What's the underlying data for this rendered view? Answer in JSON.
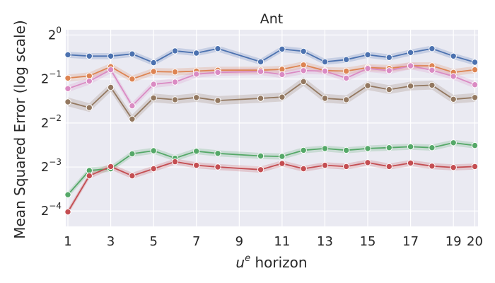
{
  "chart_data": {
    "type": "line",
    "title": "Ant",
    "xlabel_main": "u",
    "xlabel_sup": "e",
    "xlabel_rest": " horizon",
    "ylabel": "Mean Squared Error (log scale)",
    "yscale": "log2",
    "ylim_log2": [
      -4.35,
      0.12
    ],
    "xlim": [
      0.9,
      20.15
    ],
    "xticks": [
      1,
      3,
      5,
      7,
      9,
      11,
      13,
      15,
      17,
      19,
      20
    ],
    "yticks": [
      {
        "exp": 0,
        "base": "2",
        "sup": "0"
      },
      {
        "exp": -1,
        "base": "2",
        "sup": "−1"
      },
      {
        "exp": -2,
        "base": "2",
        "sup": "−2"
      },
      {
        "exp": -3,
        "base": "2",
        "sup": "−3"
      },
      {
        "exp": -4,
        "base": "2",
        "sup": "−4"
      }
    ],
    "x": [
      1,
      2,
      3,
      4,
      5,
      6,
      7,
      8,
      10,
      11,
      12,
      13,
      14,
      15,
      16,
      17,
      18,
      19,
      20
    ],
    "series": [
      {
        "name": "blue",
        "color": "#4c72b0",
        "band": 0.07,
        "log2": [
          -0.45,
          -0.48,
          -0.48,
          -0.43,
          -0.63,
          -0.36,
          -0.41,
          -0.31,
          -0.61,
          -0.32,
          -0.37,
          -0.61,
          -0.56,
          -0.45,
          -0.51,
          -0.4,
          -0.31,
          -0.48,
          -0.62
        ]
      },
      {
        "name": "orange",
        "color": "#dd8452",
        "band": 0.08,
        "log2": [
          -0.98,
          -0.93,
          -0.72,
          -1.0,
          -0.83,
          -0.84,
          -0.82,
          -0.8,
          -0.8,
          -0.78,
          -0.68,
          -0.81,
          -0.82,
          -0.74,
          -0.76,
          -0.7,
          -0.7,
          -0.85,
          -0.79
        ]
      },
      {
        "name": "pink",
        "color": "#da8bc3",
        "band": 0.08,
        "log2": [
          -1.22,
          -1.05,
          -0.79,
          -1.61,
          -1.12,
          -1.07,
          -0.89,
          -0.85,
          -0.83,
          -0.9,
          -0.81,
          -0.82,
          -0.98,
          -0.76,
          -0.81,
          -0.7,
          -0.8,
          -0.94,
          -1.13
        ]
      },
      {
        "name": "brown",
        "color": "#937860",
        "band": 0.1,
        "log2": [
          -1.52,
          -1.65,
          -1.19,
          -1.91,
          -1.43,
          -1.47,
          -1.42,
          -1.49,
          -1.44,
          -1.41,
          -1.06,
          -1.44,
          -1.47,
          -1.15,
          -1.24,
          -1.16,
          -1.14,
          -1.46,
          -1.42
        ]
      },
      {
        "name": "green",
        "color": "#55a868",
        "band": 0.07,
        "log2": [
          -3.63,
          -3.08,
          -3.04,
          -2.7,
          -2.63,
          -2.8,
          -2.64,
          -2.69,
          -2.75,
          -2.76,
          -2.62,
          -2.58,
          -2.62,
          -2.58,
          -2.56,
          -2.54,
          -2.56,
          -2.45,
          -2.51
        ]
      },
      {
        "name": "red",
        "color": "#c44e52",
        "band": 0.07,
        "log2": [
          -4.02,
          -3.2,
          -2.99,
          -3.2,
          -3.04,
          -2.88,
          -2.96,
          -3.0,
          -3.06,
          -2.92,
          -3.04,
          -2.96,
          -2.99,
          -2.9,
          -2.99,
          -2.91,
          -2.98,
          -3.01,
          -2.99
        ]
      }
    ]
  }
}
